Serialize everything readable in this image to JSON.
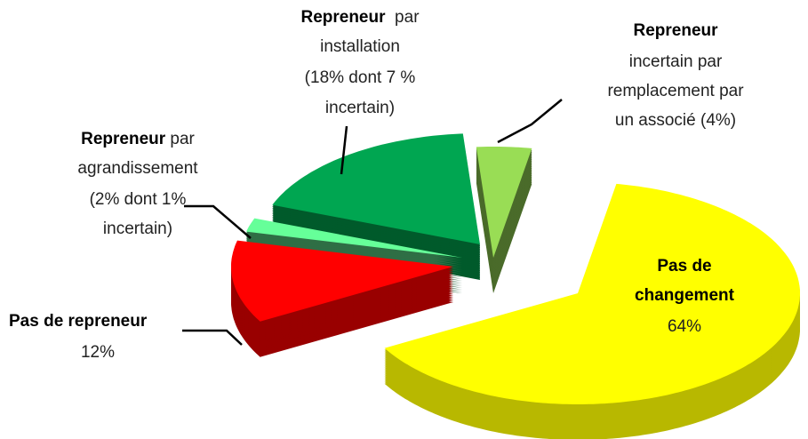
{
  "chart_data": {
    "type": "pie",
    "categories": [
      [
        [
          {
            "b": "Pas de"
          }
        ],
        [
          {
            "b": "changement"
          }
        ],
        [
          "64%"
        ]
      ],
      [
        [
          {
            "b": "Pas de repreneur"
          }
        ],
        [
          "12%"
        ]
      ],
      [
        [
          {
            "b": "Repreneur"
          },
          " par"
        ],
        [
          "agrandissement"
        ],
        [
          "(2% dont 1%"
        ],
        [
          "incertain)"
        ]
      ],
      [
        [
          {
            "b": "Repreneur"
          },
          "  par"
        ],
        [
          "installation"
        ],
        [
          "(18% dont 7 %"
        ],
        [
          "incertain)"
        ]
      ],
      [
        [
          {
            "b": "Repreneur"
          }
        ],
        [
          "incertain par"
        ],
        [
          "remplacement par"
        ],
        [
          "un associé (4%)"
        ]
      ]
    ],
    "values": [
      64,
      12,
      2,
      18,
      4
    ],
    "colors": [
      "#ffff00",
      "#ff0000",
      "#66ff99",
      "#00a651",
      "#99dd55"
    ]
  }
}
